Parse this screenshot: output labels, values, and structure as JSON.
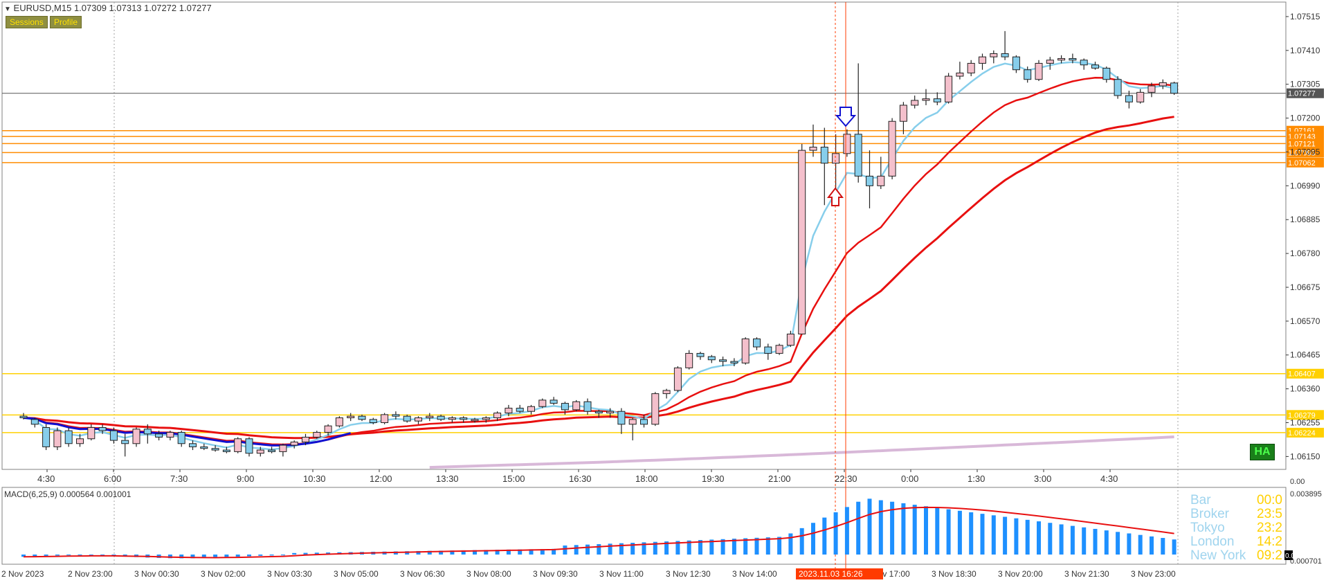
{
  "header": {
    "symbol_line": "EURUSD,M15  1.07309 1.07313 1.07272 1.07277",
    "buttons": [
      "Sessions",
      "Profile"
    ]
  },
  "colors": {
    "bull_body": "#f4c0cc",
    "bear_body": "#87ceeb",
    "ema_fast": "#87ceeb",
    "ema_mid": "#e81010",
    "ema_slow": "#e81010",
    "ema_long": "#d8b8d8",
    "blue_ma": "#1010d0",
    "orange_level": "#ff8c00",
    "yellow_level": "#ffd000",
    "macd_hist": "#1e90ff",
    "macd_signal": "#e81010",
    "grid": "#a0a0a0"
  },
  "price_axis": {
    "ticks": [
      "1.07515",
      "1.07410",
      "1.07305",
      "1.07200",
      "1.07095",
      "1.06990",
      "1.06885",
      "1.06780",
      "1.06675",
      "1.06570",
      "1.06465",
      "1.06360",
      "1.06255",
      "1.06150"
    ],
    "current_price": "1.07277",
    "level_labels": [
      "1.07161",
      "1.07143",
      "1.07121",
      "1.07093",
      "1.07062",
      "1.06407",
      "1.06279",
      "1.06224"
    ]
  },
  "time_axis_top": [
    "4:30",
    "6:00",
    "7:30",
    "9:00",
    "10:30",
    "12:00",
    "13:30",
    "15:00",
    "16:30",
    "18:00",
    "19:30",
    "21:00",
    "22:30",
    "0:00",
    "1:30",
    "3:00",
    "4:30"
  ],
  "time_axis_bottom": [
    "2 Nov 2023",
    "2 Nov 23:00",
    "3 Nov 00:30",
    "3 Nov 02:00",
    "3 Nov 03:30",
    "3 Nov 05:00",
    "3 Nov 06:30",
    "3 Nov 08:00",
    "3 Nov 09:30",
    "3 Nov 11:00",
    "3 Nov 12:30",
    "3 Nov 14:00",
    "3 Nov 15:30",
    "3 Nov 17:00",
    "3 Nov 18:30",
    "3 Nov 20:00",
    "3 Nov 21:30",
    "3 Nov 23:00"
  ],
  "cursor_time_label": "2023.11.03 16:26",
  "macd": {
    "label": "MACD(6,25,9) 0.000564 0.001001",
    "scale_top": "0.003895",
    "scale_zero": "0.00",
    "scale_bottom": "0.000701"
  },
  "subpanel_scale_label": "0.00",
  "ha_badge": "HA",
  "session_info": [
    {
      "label": "Bar",
      "value": "00:0"
    },
    {
      "label": "Broker",
      "value": "23:5"
    },
    {
      "label": "Tokyo",
      "value": "23:2"
    },
    {
      "label": "London",
      "value": "14:2"
    },
    {
      "label": "New York",
      "value": "09:2"
    }
  ],
  "chart_data": {
    "type": "candlestick",
    "symbol": "EURUSD",
    "timeframe": "M15",
    "ohlc_last": {
      "open": 1.07309,
      "high": 1.07313,
      "low": 1.07272,
      "close": 1.07277
    },
    "horizontal_levels": [
      1.07161,
      1.07143,
      1.07121,
      1.07093,
      1.07062,
      1.06407,
      1.06279,
      1.06224
    ],
    "candles": [
      {
        "o": 1.06275,
        "h": 1.06285,
        "l": 1.06265,
        "c": 1.0627
      },
      {
        "o": 1.06265,
        "h": 1.0627,
        "l": 1.0624,
        "c": 1.0625
      },
      {
        "o": 1.0624,
        "h": 1.0625,
        "l": 1.0617,
        "c": 1.0618
      },
      {
        "o": 1.0618,
        "h": 1.0624,
        "l": 1.0617,
        "c": 1.0623
      },
      {
        "o": 1.0623,
        "h": 1.0624,
        "l": 1.0618,
        "c": 1.0619
      },
      {
        "o": 1.0619,
        "h": 1.0622,
        "l": 1.0618,
        "c": 1.06205
      },
      {
        "o": 1.06205,
        "h": 1.0625,
        "l": 1.062,
        "c": 1.0624
      },
      {
        "o": 1.0624,
        "h": 1.0625,
        "l": 1.0622,
        "c": 1.0623
      },
      {
        "o": 1.0623,
        "h": 1.0624,
        "l": 1.0619,
        "c": 1.062
      },
      {
        "o": 1.062,
        "h": 1.0622,
        "l": 1.0615,
        "c": 1.0619
      },
      {
        "o": 1.0619,
        "h": 1.0624,
        "l": 1.0618,
        "c": 1.06235
      },
      {
        "o": 1.06235,
        "h": 1.0625,
        "l": 1.0619,
        "c": 1.0622
      },
      {
        "o": 1.0622,
        "h": 1.0623,
        "l": 1.062,
        "c": 1.0621
      },
      {
        "o": 1.0621,
        "h": 1.0623,
        "l": 1.062,
        "c": 1.06225
      },
      {
        "o": 1.06225,
        "h": 1.0623,
        "l": 1.0618,
        "c": 1.0619
      },
      {
        "o": 1.0619,
        "h": 1.062,
        "l": 1.0617,
        "c": 1.0618
      },
      {
        "o": 1.0618,
        "h": 1.0619,
        "l": 1.0617,
        "c": 1.06175
      },
      {
        "o": 1.06175,
        "h": 1.06185,
        "l": 1.06165,
        "c": 1.0617
      },
      {
        "o": 1.0617,
        "h": 1.0618,
        "l": 1.0616,
        "c": 1.06165
      },
      {
        "o": 1.06165,
        "h": 1.0621,
        "l": 1.0616,
        "c": 1.06205
      },
      {
        "o": 1.06205,
        "h": 1.0621,
        "l": 1.0615,
        "c": 1.0616
      },
      {
        "o": 1.0616,
        "h": 1.0618,
        "l": 1.0615,
        "c": 1.0617
      },
      {
        "o": 1.0617,
        "h": 1.0618,
        "l": 1.0616,
        "c": 1.06165
      },
      {
        "o": 1.06165,
        "h": 1.0619,
        "l": 1.0615,
        "c": 1.06185
      },
      {
        "o": 1.06185,
        "h": 1.062,
        "l": 1.06175,
        "c": 1.06195
      },
      {
        "o": 1.06195,
        "h": 1.0622,
        "l": 1.06185,
        "c": 1.0621
      },
      {
        "o": 1.0621,
        "h": 1.0623,
        "l": 1.06205,
        "c": 1.06225
      },
      {
        "o": 1.06225,
        "h": 1.0625,
        "l": 1.06215,
        "c": 1.06245
      },
      {
        "o": 1.06245,
        "h": 1.06275,
        "l": 1.0624,
        "c": 1.0627
      },
      {
        "o": 1.0627,
        "h": 1.06285,
        "l": 1.0626,
        "c": 1.06275
      },
      {
        "o": 1.06275,
        "h": 1.0628,
        "l": 1.0626,
        "c": 1.06265
      },
      {
        "o": 1.06265,
        "h": 1.0627,
        "l": 1.0625,
        "c": 1.06255
      },
      {
        "o": 1.06255,
        "h": 1.06285,
        "l": 1.0625,
        "c": 1.0628
      },
      {
        "o": 1.0628,
        "h": 1.0629,
        "l": 1.06265,
        "c": 1.06275
      },
      {
        "o": 1.06275,
        "h": 1.0628,
        "l": 1.06255,
        "c": 1.0626
      },
      {
        "o": 1.0626,
        "h": 1.06275,
        "l": 1.0625,
        "c": 1.0627
      },
      {
        "o": 1.0627,
        "h": 1.06285,
        "l": 1.0626,
        "c": 1.06275
      },
      {
        "o": 1.06275,
        "h": 1.0628,
        "l": 1.0626,
        "c": 1.06265
      },
      {
        "o": 1.06265,
        "h": 1.06275,
        "l": 1.06255,
        "c": 1.0627
      },
      {
        "o": 1.0627,
        "h": 1.06275,
        "l": 1.06255,
        "c": 1.06265
      },
      {
        "o": 1.06265,
        "h": 1.0627,
        "l": 1.06255,
        "c": 1.06265
      },
      {
        "o": 1.06265,
        "h": 1.06275,
        "l": 1.06255,
        "c": 1.0627
      },
      {
        "o": 1.0627,
        "h": 1.0629,
        "l": 1.0626,
        "c": 1.06285
      },
      {
        "o": 1.06285,
        "h": 1.0631,
        "l": 1.06275,
        "c": 1.063
      },
      {
        "o": 1.063,
        "h": 1.0631,
        "l": 1.06285,
        "c": 1.0629
      },
      {
        "o": 1.0629,
        "h": 1.0631,
        "l": 1.0628,
        "c": 1.06305
      },
      {
        "o": 1.06305,
        "h": 1.0633,
        "l": 1.063,
        "c": 1.06325
      },
      {
        "o": 1.06325,
        "h": 1.06335,
        "l": 1.0631,
        "c": 1.06315
      },
      {
        "o": 1.06315,
        "h": 1.0632,
        "l": 1.0628,
        "c": 1.06295
      },
      {
        "o": 1.06295,
        "h": 1.06325,
        "l": 1.0629,
        "c": 1.0632
      },
      {
        "o": 1.0632,
        "h": 1.0633,
        "l": 1.0628,
        "c": 1.0629
      },
      {
        "o": 1.0629,
        "h": 1.06295,
        "l": 1.0627,
        "c": 1.06285
      },
      {
        "o": 1.06285,
        "h": 1.063,
        "l": 1.0627,
        "c": 1.0629
      },
      {
        "o": 1.0629,
        "h": 1.063,
        "l": 1.0622,
        "c": 1.0625
      },
      {
        "o": 1.0625,
        "h": 1.0627,
        "l": 1.062,
        "c": 1.06265
      },
      {
        "o": 1.06265,
        "h": 1.0628,
        "l": 1.0624,
        "c": 1.0625
      },
      {
        "o": 1.0625,
        "h": 1.0635,
        "l": 1.06245,
        "c": 1.06345
      },
      {
        "o": 1.06345,
        "h": 1.0636,
        "l": 1.0633,
        "c": 1.06355
      },
      {
        "o": 1.06355,
        "h": 1.0643,
        "l": 1.0635,
        "c": 1.06425
      },
      {
        "o": 1.06425,
        "h": 1.0648,
        "l": 1.0642,
        "c": 1.0647
      },
      {
        "o": 1.0647,
        "h": 1.06475,
        "l": 1.0645,
        "c": 1.0646
      },
      {
        "o": 1.0646,
        "h": 1.06465,
        "l": 1.0644,
        "c": 1.0645
      },
      {
        "o": 1.0645,
        "h": 1.0646,
        "l": 1.0643,
        "c": 1.06445
      },
      {
        "o": 1.06445,
        "h": 1.06455,
        "l": 1.0643,
        "c": 1.0644
      },
      {
        "o": 1.0644,
        "h": 1.0652,
        "l": 1.06435,
        "c": 1.06515
      },
      {
        "o": 1.06515,
        "h": 1.0652,
        "l": 1.0648,
        "c": 1.0649
      },
      {
        "o": 1.0649,
        "h": 1.065,
        "l": 1.0645,
        "c": 1.0647
      },
      {
        "o": 1.0647,
        "h": 1.065,
        "l": 1.06465,
        "c": 1.06495
      },
      {
        "o": 1.06495,
        "h": 1.0654,
        "l": 1.0649,
        "c": 1.0653
      },
      {
        "o": 1.0653,
        "h": 1.0712,
        "l": 1.0653,
        "c": 1.071
      },
      {
        "o": 1.071,
        "h": 1.0718,
        "l": 1.0708,
        "c": 1.0711
      },
      {
        "o": 1.0711,
        "h": 1.0717,
        "l": 1.0693,
        "c": 1.0706
      },
      {
        "o": 1.0706,
        "h": 1.0715,
        "l": 1.0694,
        "c": 1.0709
      },
      {
        "o": 1.0709,
        "h": 1.07165,
        "l": 1.0708,
        "c": 1.0715
      },
      {
        "o": 1.0715,
        "h": 1.0737,
        "l": 1.07,
        "c": 1.0702
      },
      {
        "o": 1.0702,
        "h": 1.071,
        "l": 1.0692,
        "c": 1.0699
      },
      {
        "o": 1.0699,
        "h": 1.0708,
        "l": 1.0698,
        "c": 1.0702
      },
      {
        "o": 1.0702,
        "h": 1.072,
        "l": 1.0701,
        "c": 1.0719
      },
      {
        "o": 1.0719,
        "h": 1.0725,
        "l": 1.0715,
        "c": 1.0724
      },
      {
        "o": 1.0724,
        "h": 1.0727,
        "l": 1.0723,
        "c": 1.07255
      },
      {
        "o": 1.07255,
        "h": 1.0729,
        "l": 1.0724,
        "c": 1.0726
      },
      {
        "o": 1.0726,
        "h": 1.0728,
        "l": 1.0724,
        "c": 1.0725
      },
      {
        "o": 1.0725,
        "h": 1.0734,
        "l": 1.07245,
        "c": 1.0733
      },
      {
        "o": 1.0733,
        "h": 1.07375,
        "l": 1.0732,
        "c": 1.0734
      },
      {
        "o": 1.0734,
        "h": 1.0738,
        "l": 1.0733,
        "c": 1.0737
      },
      {
        "o": 1.0737,
        "h": 1.074,
        "l": 1.0735,
        "c": 1.0739
      },
      {
        "o": 1.0739,
        "h": 1.0741,
        "l": 1.0737,
        "c": 1.074
      },
      {
        "o": 1.074,
        "h": 1.0747,
        "l": 1.0738,
        "c": 1.0739
      },
      {
        "o": 1.0739,
        "h": 1.07395,
        "l": 1.0734,
        "c": 1.0735
      },
      {
        "o": 1.0735,
        "h": 1.0736,
        "l": 1.0731,
        "c": 1.0732
      },
      {
        "o": 1.0732,
        "h": 1.0738,
        "l": 1.07315,
        "c": 1.0737
      },
      {
        "o": 1.0737,
        "h": 1.0739,
        "l": 1.0735,
        "c": 1.0738
      },
      {
        "o": 1.0738,
        "h": 1.07395,
        "l": 1.0737,
        "c": 1.07385
      },
      {
        "o": 1.07385,
        "h": 1.074,
        "l": 1.0737,
        "c": 1.0738
      },
      {
        "o": 1.0738,
        "h": 1.07385,
        "l": 1.0735,
        "c": 1.07365
      },
      {
        "o": 1.07365,
        "h": 1.07375,
        "l": 1.0735,
        "c": 1.07355
      },
      {
        "o": 1.07355,
        "h": 1.0736,
        "l": 1.0731,
        "c": 1.0732
      },
      {
        "o": 1.0732,
        "h": 1.0733,
        "l": 1.0726,
        "c": 1.0727
      },
      {
        "o": 1.0727,
        "h": 1.07285,
        "l": 1.0723,
        "c": 1.0725
      },
      {
        "o": 1.0725,
        "h": 1.0729,
        "l": 1.07245,
        "c": 1.0728
      },
      {
        "o": 1.0728,
        "h": 1.0731,
        "l": 1.07265,
        "c": 1.073
      },
      {
        "o": 1.073,
        "h": 1.0732,
        "l": 1.0729,
        "c": 1.0731
      },
      {
        "o": 1.07309,
        "h": 1.07313,
        "l": 1.07272,
        "c": 1.07277
      }
    ]
  }
}
